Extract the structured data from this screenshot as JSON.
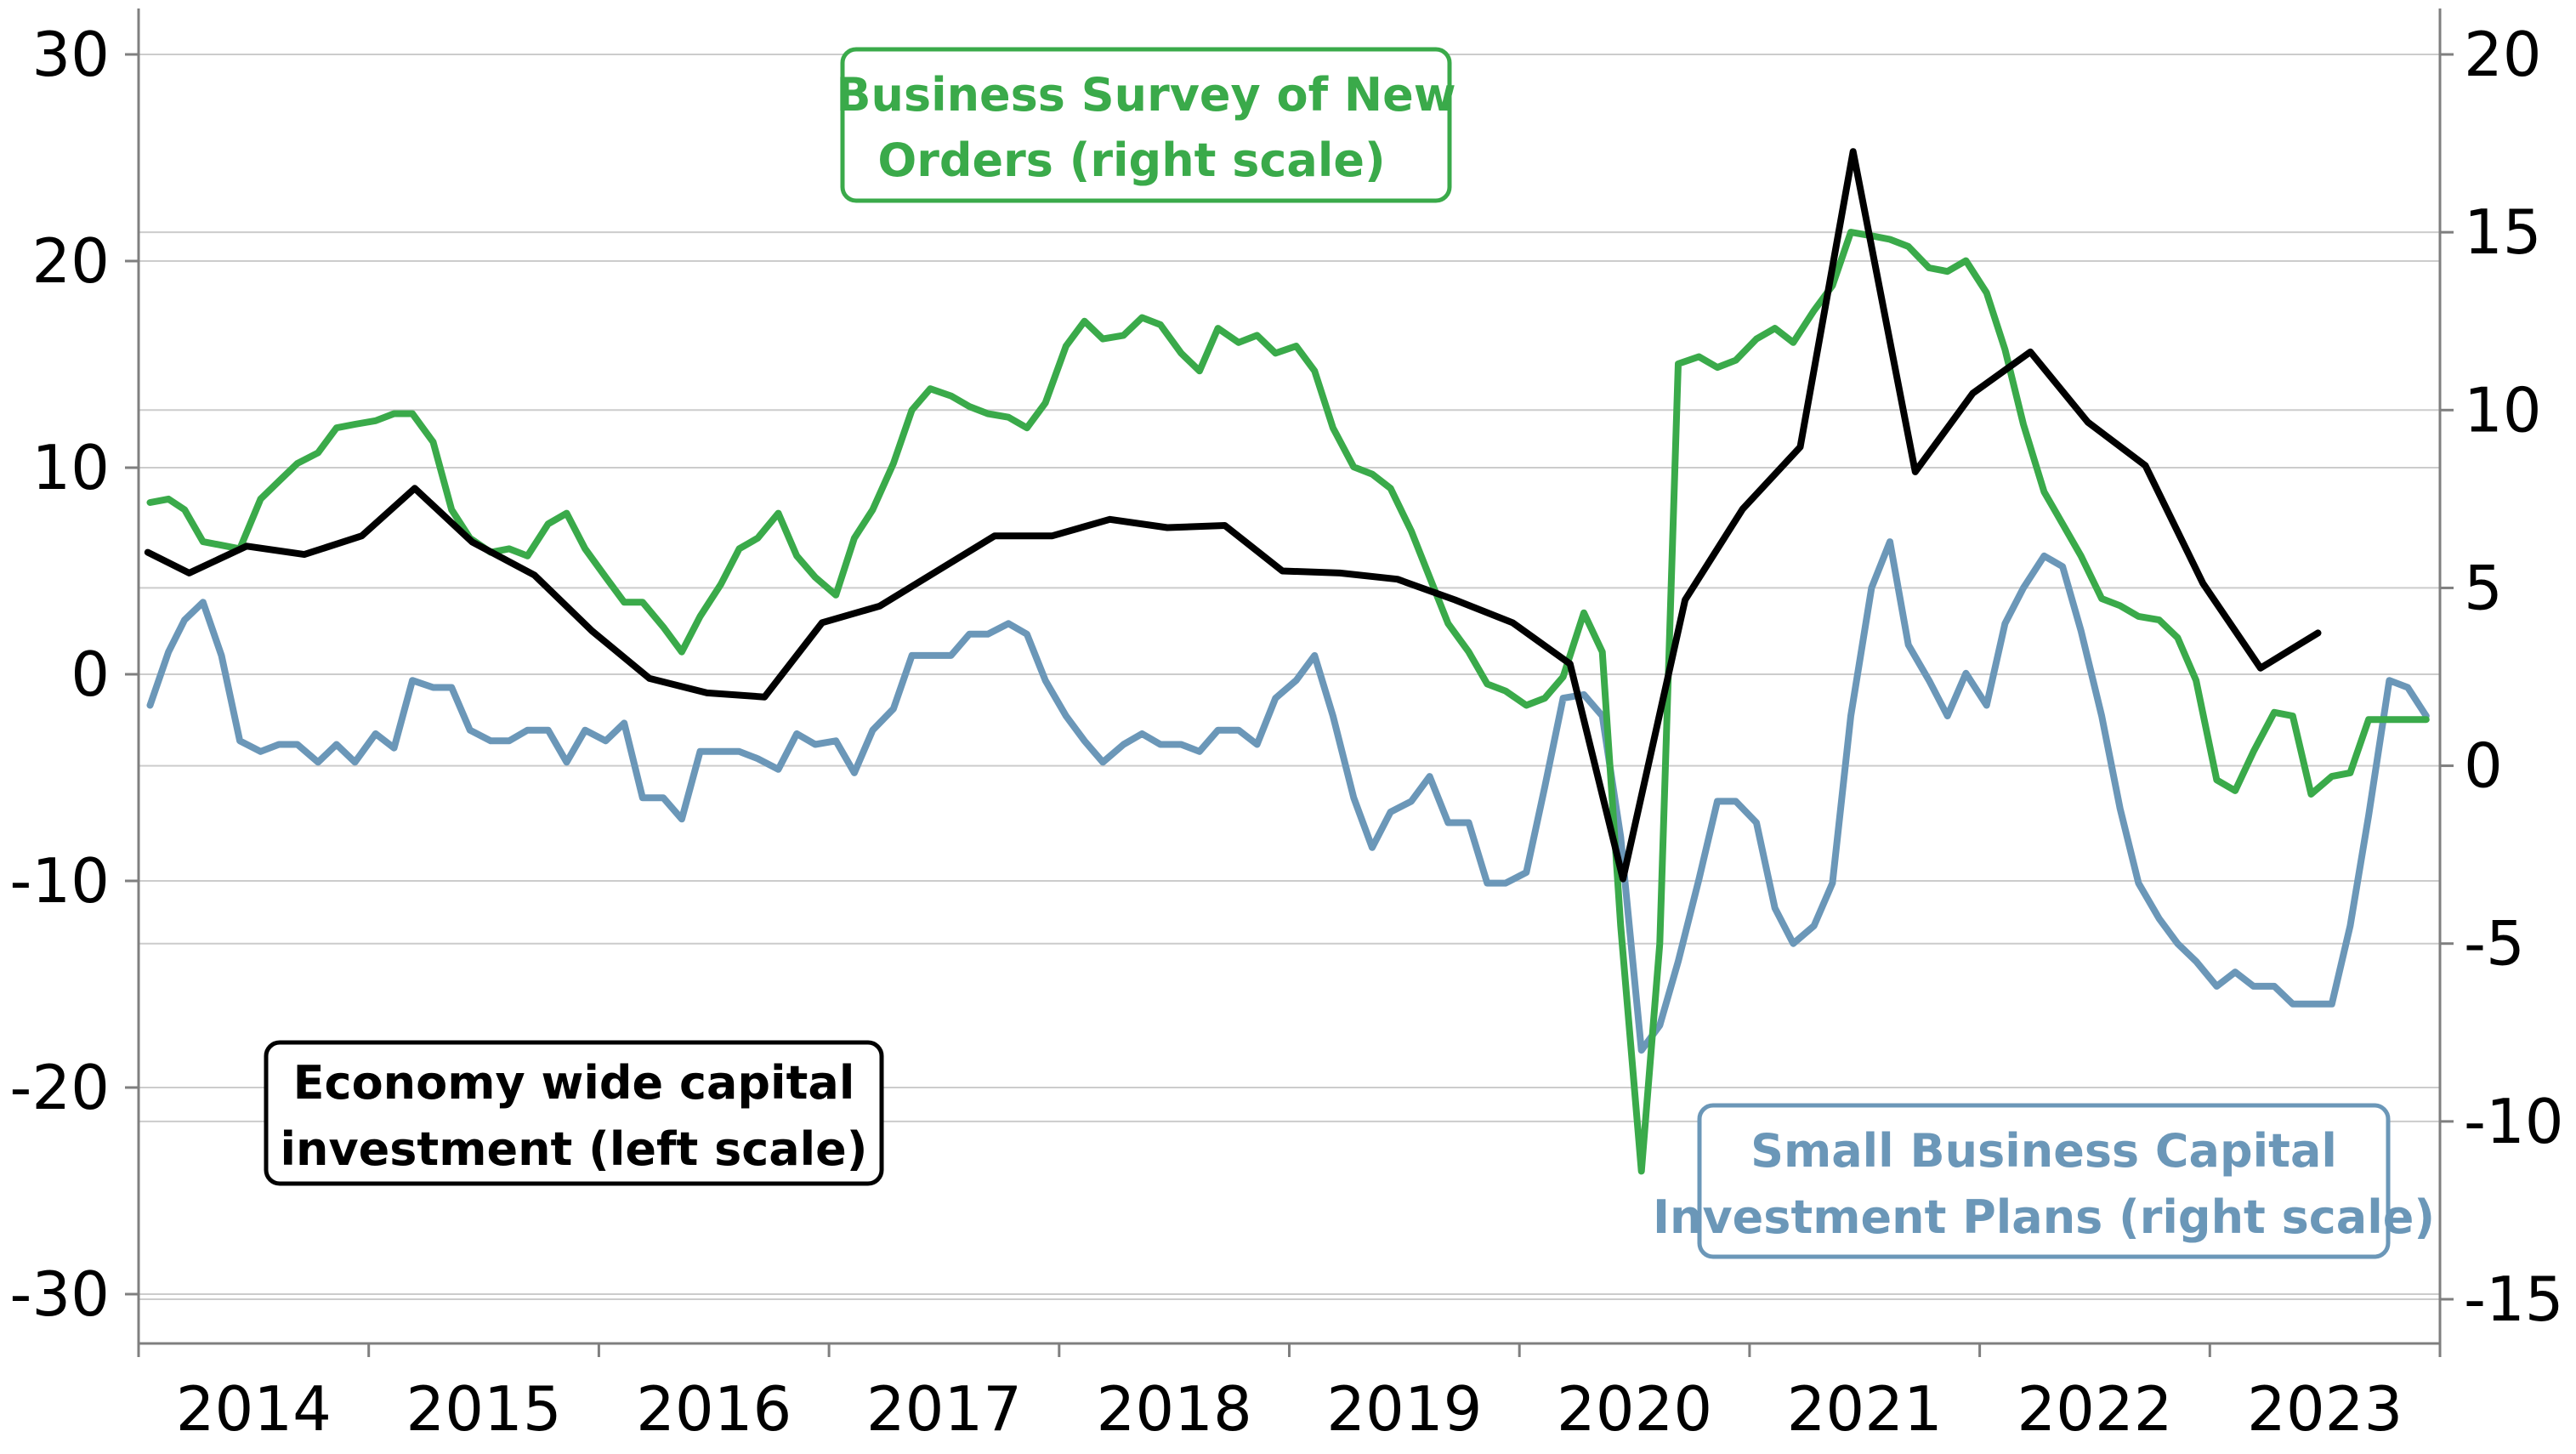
{
  "colors": {
    "economy": "#000000",
    "new_orders": "#3aaa4a",
    "small_business": "#6b97b8",
    "grid": "#cccccc",
    "axis": "#7f7f7f"
  },
  "legends": {
    "new_orders": [
      "Business Survey of New",
      "Orders (right scale)"
    ],
    "economy": [
      "Economy wide capital",
      "investment (left scale)"
    ],
    "small_business": [
      "Small Business Capital",
      "Investment Plans (right scale)"
    ]
  },
  "chart_data": {
    "type": "line",
    "title": "",
    "xlabel": "",
    "x_range": [
      2014.0,
      2024.0
    ],
    "x_tick_labels": [
      "2014",
      "2015",
      "2016",
      "2017",
      "2018",
      "2019",
      "2020",
      "2021",
      "2022",
      "2023"
    ],
    "left_axis": {
      "range": [
        -30,
        30
      ],
      "ticks": [
        30,
        20,
        10,
        0,
        -10,
        -20,
        -30
      ],
      "tick_labels": [
        "30",
        "20",
        "10",
        "0",
        "-10",
        "-20",
        "-30"
      ]
    },
    "right_axis": {
      "range": [
        -15,
        20
      ],
      "ticks": [
        20,
        15,
        10,
        5,
        0,
        -5,
        -10,
        -15
      ],
      "tick_labels": [
        "20",
        "15",
        "10",
        "5",
        "0",
        "-5",
        "-10",
        "-15"
      ]
    },
    "grid": "horizontal",
    "series": [
      {
        "name": "Economy wide capital investment (left scale)",
        "axis": "left",
        "x": [
          2014.04,
          2014.22,
          2014.47,
          2014.72,
          2014.97,
          2015.2,
          2015.45,
          2015.72,
          2015.97,
          2016.22,
          2016.47,
          2016.72,
          2016.97,
          2017.22,
          2017.47,
          2017.72,
          2017.97,
          2018.22,
          2018.47,
          2018.72,
          2018.97,
          2019.22,
          2019.47,
          2019.72,
          2019.97,
          2020.22,
          2020.45,
          2020.72,
          2020.97,
          2021.22,
          2021.45,
          2021.72,
          2021.97,
          2022.22,
          2022.47,
          2022.72,
          2022.97,
          2023.22,
          2023.47
        ],
        "values": [
          5.9,
          4.9,
          6.2,
          5.8,
          6.7,
          9.0,
          6.4,
          4.8,
          2.1,
          -0.2,
          -0.9,
          -1.1,
          2.5,
          3.3,
          5.0,
          6.7,
          6.7,
          7.5,
          7.1,
          7.2,
          5.0,
          4.9,
          4.6,
          3.6,
          2.5,
          0.5,
          -9.9,
          3.6,
          8.0,
          11.0,
          25.3,
          9.8,
          13.6,
          15.6,
          12.2,
          10.1,
          4.4,
          0.3,
          2.0
        ]
      },
      {
        "name": "Business Survey of New Orders (right scale)",
        "axis": "right",
        "x": [
          2014.05,
          2014.13,
          2014.2,
          2014.28,
          2014.36,
          2014.44,
          2014.53,
          2014.61,
          2014.69,
          2014.78,
          2014.86,
          2014.94,
          2015.03,
          2015.11,
          2015.19,
          2015.28,
          2015.36,
          2015.44,
          2015.53,
          2015.61,
          2015.69,
          2015.78,
          2015.86,
          2015.94,
          2016.03,
          2016.11,
          2016.19,
          2016.28,
          2016.36,
          2016.44,
          2016.53,
          2016.61,
          2016.69,
          2016.78,
          2016.86,
          2016.94,
          2017.03,
          2017.11,
          2017.19,
          2017.28,
          2017.36,
          2017.44,
          2017.53,
          2017.61,
          2017.69,
          2017.78,
          2017.86,
          2017.94,
          2018.03,
          2018.11,
          2018.19,
          2018.28,
          2018.36,
          2018.44,
          2018.53,
          2018.61,
          2018.69,
          2018.78,
          2018.86,
          2018.94,
          2019.03,
          2019.11,
          2019.19,
          2019.28,
          2019.36,
          2019.44,
          2019.53,
          2019.61,
          2019.69,
          2019.78,
          2019.86,
          2019.94,
          2020.03,
          2020.11,
          2020.19,
          2020.28,
          2020.36,
          2020.44,
          2020.53,
          2020.61,
          2020.69,
          2020.78,
          2020.86,
          2020.94,
          2021.03,
          2021.11,
          2021.19,
          2021.28,
          2021.36,
          2021.44,
          2021.53,
          2021.61,
          2021.69,
          2021.78,
          2021.86,
          2021.94,
          2022.03,
          2022.11,
          2022.19,
          2022.28,
          2022.36,
          2022.44,
          2022.53,
          2022.61,
          2022.69,
          2022.78,
          2022.86,
          2022.94,
          2023.03,
          2023.11,
          2023.19,
          2023.28,
          2023.36,
          2023.44,
          2023.53,
          2023.61,
          2023.69,
          2023.78,
          2023.86,
          2023.94
        ],
        "values": [
          7.4,
          7.5,
          7.2,
          6.3,
          6.2,
          6.1,
          7.5,
          8.0,
          8.5,
          8.8,
          9.5,
          9.6,
          9.7,
          9.9,
          9.9,
          9.1,
          7.2,
          6.4,
          6.0,
          6.1,
          5.9,
          6.8,
          7.1,
          6.1,
          5.3,
          4.6,
          4.6,
          3.9,
          3.2,
          4.2,
          5.1,
          6.1,
          6.4,
          7.1,
          5.9,
          5.3,
          4.8,
          6.4,
          7.2,
          8.5,
          10.0,
          10.6,
          10.4,
          10.1,
          9.9,
          9.8,
          9.5,
          10.2,
          11.8,
          12.5,
          12.0,
          12.1,
          12.6,
          12.4,
          11.6,
          11.1,
          12.3,
          11.9,
          12.1,
          11.6,
          11.8,
          11.1,
          9.5,
          8.4,
          8.2,
          7.8,
          6.6,
          5.3,
          4.0,
          3.2,
          2.3,
          2.1,
          1.7,
          1.9,
          2.5,
          4.3,
          3.2,
          -4.5,
          -11.4,
          -5.0,
          11.3,
          11.5,
          11.2,
          11.4,
          12.0,
          12.3,
          11.9,
          12.8,
          13.5,
          15.0,
          14.9,
          14.8,
          14.6,
          14.0,
          13.9,
          14.2,
          13.3,
          11.7,
          9.6,
          7.7,
          6.8,
          5.9,
          4.7,
          4.5,
          4.2,
          4.1,
          3.6,
          2.4,
          -0.4,
          -0.7,
          0.4,
          1.5,
          1.4,
          -0.8,
          -0.3,
          -0.2,
          1.3,
          1.3,
          1.3,
          1.3
        ]
      },
      {
        "name": "Small Business Capital Investment Plans (right scale)",
        "axis": "right",
        "x": [
          2014.05,
          2014.13,
          2014.2,
          2014.28,
          2014.36,
          2014.44,
          2014.53,
          2014.61,
          2014.69,
          2014.78,
          2014.86,
          2014.94,
          2015.03,
          2015.11,
          2015.19,
          2015.28,
          2015.36,
          2015.44,
          2015.53,
          2015.61,
          2015.69,
          2015.78,
          2015.86,
          2015.94,
          2016.03,
          2016.11,
          2016.19,
          2016.28,
          2016.36,
          2016.44,
          2016.53,
          2016.61,
          2016.69,
          2016.78,
          2016.86,
          2016.94,
          2017.03,
          2017.11,
          2017.19,
          2017.28,
          2017.36,
          2017.44,
          2017.53,
          2017.61,
          2017.69,
          2017.78,
          2017.86,
          2017.94,
          2018.03,
          2018.11,
          2018.19,
          2018.28,
          2018.36,
          2018.44,
          2018.53,
          2018.61,
          2018.69,
          2018.78,
          2018.86,
          2018.94,
          2019.03,
          2019.11,
          2019.19,
          2019.28,
          2019.36,
          2019.44,
          2019.53,
          2019.61,
          2019.69,
          2019.78,
          2019.86,
          2019.94,
          2020.03,
          2020.11,
          2020.19,
          2020.28,
          2020.36,
          2020.44,
          2020.53,
          2020.61,
          2020.69,
          2020.78,
          2020.86,
          2020.94,
          2021.03,
          2021.11,
          2021.19,
          2021.28,
          2021.36,
          2021.44,
          2021.53,
          2021.61,
          2021.69,
          2021.78,
          2021.86,
          2021.94,
          2022.03,
          2022.11,
          2022.19,
          2022.28,
          2022.36,
          2022.44,
          2022.53,
          2022.61,
          2022.69,
          2022.78,
          2022.86,
          2022.94,
          2023.03,
          2023.11,
          2023.19,
          2023.28,
          2023.36,
          2023.44,
          2023.53,
          2023.61,
          2023.69,
          2023.78,
          2023.86,
          2023.94
        ],
        "values": [
          1.7,
          3.2,
          4.1,
          4.6,
          3.1,
          0.7,
          0.4,
          0.6,
          0.6,
          0.1,
          0.6,
          0.1,
          0.9,
          0.5,
          2.4,
          2.2,
          2.2,
          1.0,
          0.7,
          0.7,
          1.0,
          1.0,
          0.1,
          1.0,
          0.7,
          1.2,
          -0.9,
          -0.9,
          -1.5,
          0.4,
          0.4,
          0.4,
          0.2,
          -0.1,
          0.9,
          0.6,
          0.7,
          -0.2,
          1.0,
          1.6,
          3.1,
          3.1,
          3.1,
          3.7,
          3.7,
          4.0,
          3.7,
          2.4,
          1.4,
          0.7,
          0.1,
          0.6,
          0.9,
          0.6,
          0.6,
          0.4,
          1.0,
          1.0,
          0.6,
          1.9,
          2.4,
          3.1,
          1.4,
          -0.9,
          -2.3,
          -1.3,
          -1.0,
          -0.3,
          -1.6,
          -1.6,
          -3.3,
          -3.3,
          -3.0,
          -0.6,
          1.9,
          2.0,
          1.4,
          -2.0,
          -8.0,
          -7.3,
          -5.5,
          -3.2,
          -1.0,
          -1.0,
          -1.6,
          -4.0,
          -5.0,
          -4.5,
          -3.3,
          1.4,
          5.0,
          6.3,
          3.4,
          2.4,
          1.4,
          2.6,
          1.7,
          4.0,
          5.0,
          5.9,
          5.6,
          3.8,
          1.4,
          -1.2,
          -3.3,
          -4.3,
          -5.0,
          -5.5,
          -6.2,
          -5.8,
          -6.2,
          -6.2,
          -6.7,
          -6.7,
          -6.7,
          -4.5,
          -1.4,
          2.4,
          2.2,
          1.4
        ]
      }
    ]
  }
}
